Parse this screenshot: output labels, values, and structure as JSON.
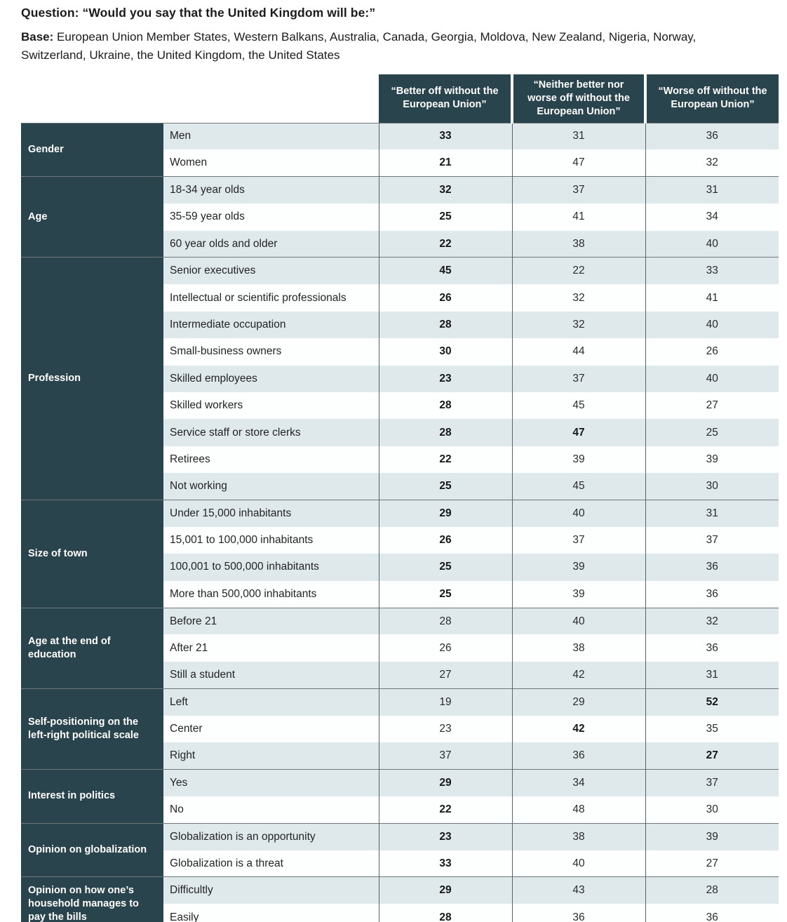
{
  "page": {
    "question_label": "Question:",
    "question_text": "“Would you say that the United Kingdom will be:”",
    "base_label": "Base:",
    "base_text": "European Union Member States, Western Balkans, Australia, Canada, Georgia, Moldova, New Zealand, Nigeria, Norway, Switzerland, Ukraine, the United Kingdom, the United States"
  },
  "colors": {
    "header_bg": "#29444d",
    "row_alt_bg": "#dfe9eb",
    "row_bg": "#fdfefe",
    "divider": "#55646a",
    "group_separator": "#707779",
    "text": "#1c1c1c"
  },
  "chart_data": {
    "type": "table",
    "title": "Would you say that the United Kingdom will be:",
    "columns": [
      "“Better off without the European Union”",
      "“Neither better nor worse off without the European Union”",
      "“Worse off without the European Union”"
    ],
    "groups": [
      {
        "label": "Gender",
        "rows": [
          {
            "label": "Men",
            "values": [
              33,
              31,
              36
            ],
            "bold": [
              true,
              false,
              false
            ]
          },
          {
            "label": "Women",
            "values": [
              21,
              47,
              32
            ],
            "bold": [
              true,
              false,
              false
            ]
          }
        ]
      },
      {
        "label": "Age",
        "rows": [
          {
            "label": "18-34 year olds",
            "values": [
              32,
              37,
              31
            ],
            "bold": [
              true,
              false,
              false
            ]
          },
          {
            "label": "35-59 year olds",
            "values": [
              25,
              41,
              34
            ],
            "bold": [
              true,
              false,
              false
            ]
          },
          {
            "label": "60 year olds and older",
            "values": [
              22,
              38,
              40
            ],
            "bold": [
              true,
              false,
              false
            ]
          }
        ]
      },
      {
        "label": "Profession",
        "rows": [
          {
            "label": "Senior executives",
            "values": [
              45,
              22,
              33
            ],
            "bold": [
              true,
              false,
              false
            ]
          },
          {
            "label": "Intellectual or scientific professionals",
            "values": [
              26,
              32,
              41
            ],
            "bold": [
              true,
              false,
              false
            ]
          },
          {
            "label": "Intermediate occupation",
            "values": [
              28,
              32,
              40
            ],
            "bold": [
              true,
              false,
              false
            ]
          },
          {
            "label": "Small-business owners",
            "values": [
              30,
              44,
              26
            ],
            "bold": [
              true,
              false,
              false
            ]
          },
          {
            "label": "Skilled employees",
            "values": [
              23,
              37,
              40
            ],
            "bold": [
              true,
              false,
              false
            ]
          },
          {
            "label": "Skilled workers",
            "values": [
              28,
              45,
              27
            ],
            "bold": [
              true,
              false,
              false
            ]
          },
          {
            "label": "Service staff or store clerks",
            "values": [
              28,
              47,
              25
            ],
            "bold": [
              true,
              true,
              false
            ]
          },
          {
            "label": "Retirees",
            "values": [
              22,
              39,
              39
            ],
            "bold": [
              true,
              false,
              false
            ]
          },
          {
            "label": "Not working",
            "values": [
              25,
              45,
              30
            ],
            "bold": [
              true,
              false,
              false
            ]
          }
        ]
      },
      {
        "label": "Size of town",
        "rows": [
          {
            "label": "Under 15,000 inhabitants",
            "values": [
              29,
              40,
              31
            ],
            "bold": [
              true,
              false,
              false
            ]
          },
          {
            "label": "15,001 to 100,000 inhabitants",
            "values": [
              26,
              37,
              37
            ],
            "bold": [
              true,
              false,
              false
            ]
          },
          {
            "label": "100,001 to 500,000 inhabitants",
            "values": [
              25,
              39,
              36
            ],
            "bold": [
              true,
              false,
              false
            ]
          },
          {
            "label": "More than 500,000 inhabitants",
            "values": [
              25,
              39,
              36
            ],
            "bold": [
              true,
              false,
              false
            ]
          }
        ]
      },
      {
        "label": "Age at the end of education",
        "rows": [
          {
            "label": "Before 21",
            "values": [
              28,
              40,
              32
            ],
            "bold": [
              false,
              false,
              false
            ]
          },
          {
            "label": "After 21",
            "values": [
              26,
              38,
              36
            ],
            "bold": [
              false,
              false,
              false
            ]
          },
          {
            "label": "Still a student",
            "values": [
              27,
              42,
              31
            ],
            "bold": [
              false,
              false,
              false
            ]
          }
        ]
      },
      {
        "label": "Self-positioning on the left-right political scale",
        "rows": [
          {
            "label": "Left",
            "values": [
              19,
              29,
              52
            ],
            "bold": [
              false,
              false,
              true
            ]
          },
          {
            "label": "Center",
            "values": [
              23,
              42,
              35
            ],
            "bold": [
              false,
              true,
              false
            ]
          },
          {
            "label": "Right",
            "values": [
              37,
              36,
              27
            ],
            "bold": [
              false,
              false,
              true
            ]
          }
        ]
      },
      {
        "label": "Interest in politics",
        "rows": [
          {
            "label": "Yes",
            "values": [
              29,
              34,
              37
            ],
            "bold": [
              true,
              false,
              false
            ]
          },
          {
            "label": "No",
            "values": [
              22,
              48,
              30
            ],
            "bold": [
              true,
              false,
              false
            ]
          }
        ]
      },
      {
        "label": "Opinion on globalization",
        "rows": [
          {
            "label": "Globalization is an opportunity",
            "values": [
              23,
              38,
              39
            ],
            "bold": [
              true,
              false,
              false
            ]
          },
          {
            "label": "Globalization is a threat",
            "values": [
              33,
              40,
              27
            ],
            "bold": [
              true,
              false,
              false
            ]
          }
        ]
      },
      {
        "label": "Opinion on how one’s household manages to pay the bills",
        "rows": [
          {
            "label": "Difficultly",
            "values": [
              29,
              43,
              28
            ],
            "bold": [
              true,
              false,
              false
            ]
          },
          {
            "label": "Easily",
            "values": [
              28,
              36,
              36
            ],
            "bold": [
              true,
              false,
              false
            ]
          }
        ]
      }
    ]
  }
}
